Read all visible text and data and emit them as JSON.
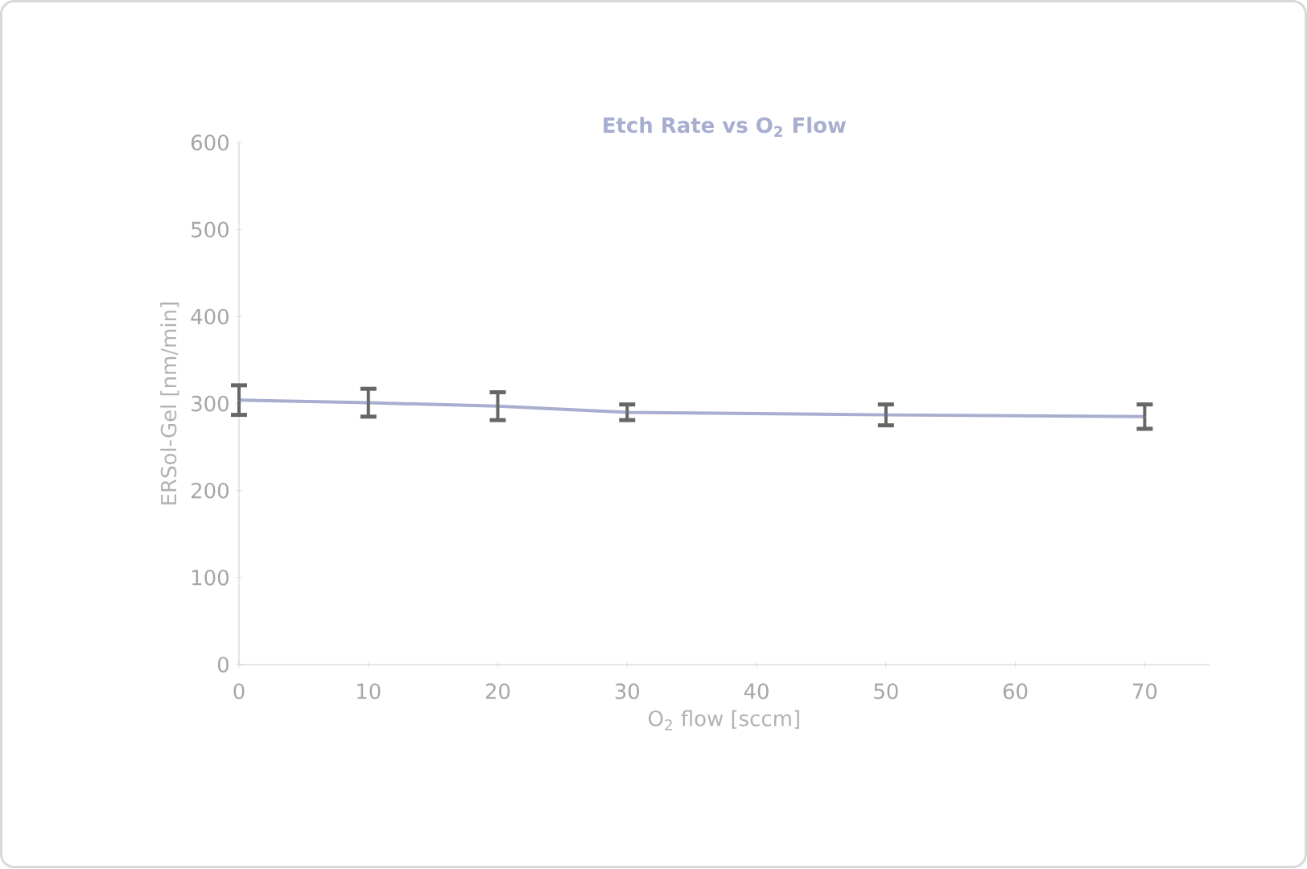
{
  "chart_data": {
    "type": "line",
    "title": "Etch Rate vs O$_{2}$ Flow",
    "xlabel": "O$_{2}$ flow [sccm]",
    "ylabel": "ERSol-Gel [nm/min]",
    "x": [
      0,
      10,
      20,
      30,
      50,
      70
    ],
    "series": [
      {
        "color": "#a8aed0",
        "values": [
          304,
          301,
          297,
          290,
          287,
          285
        ],
        "errors": [
          17,
          16,
          16,
          9,
          12,
          14
        ]
      }
    ],
    "xlim": [
      0,
      75
    ],
    "ylim": [
      0,
      600
    ],
    "xticks": [
      0,
      10,
      20,
      30,
      40,
      50,
      60,
      70
    ],
    "yticks": [
      0,
      100,
      200,
      300,
      400,
      500,
      600
    ],
    "grid": false,
    "marker": "none",
    "line_style": "solid"
  }
}
